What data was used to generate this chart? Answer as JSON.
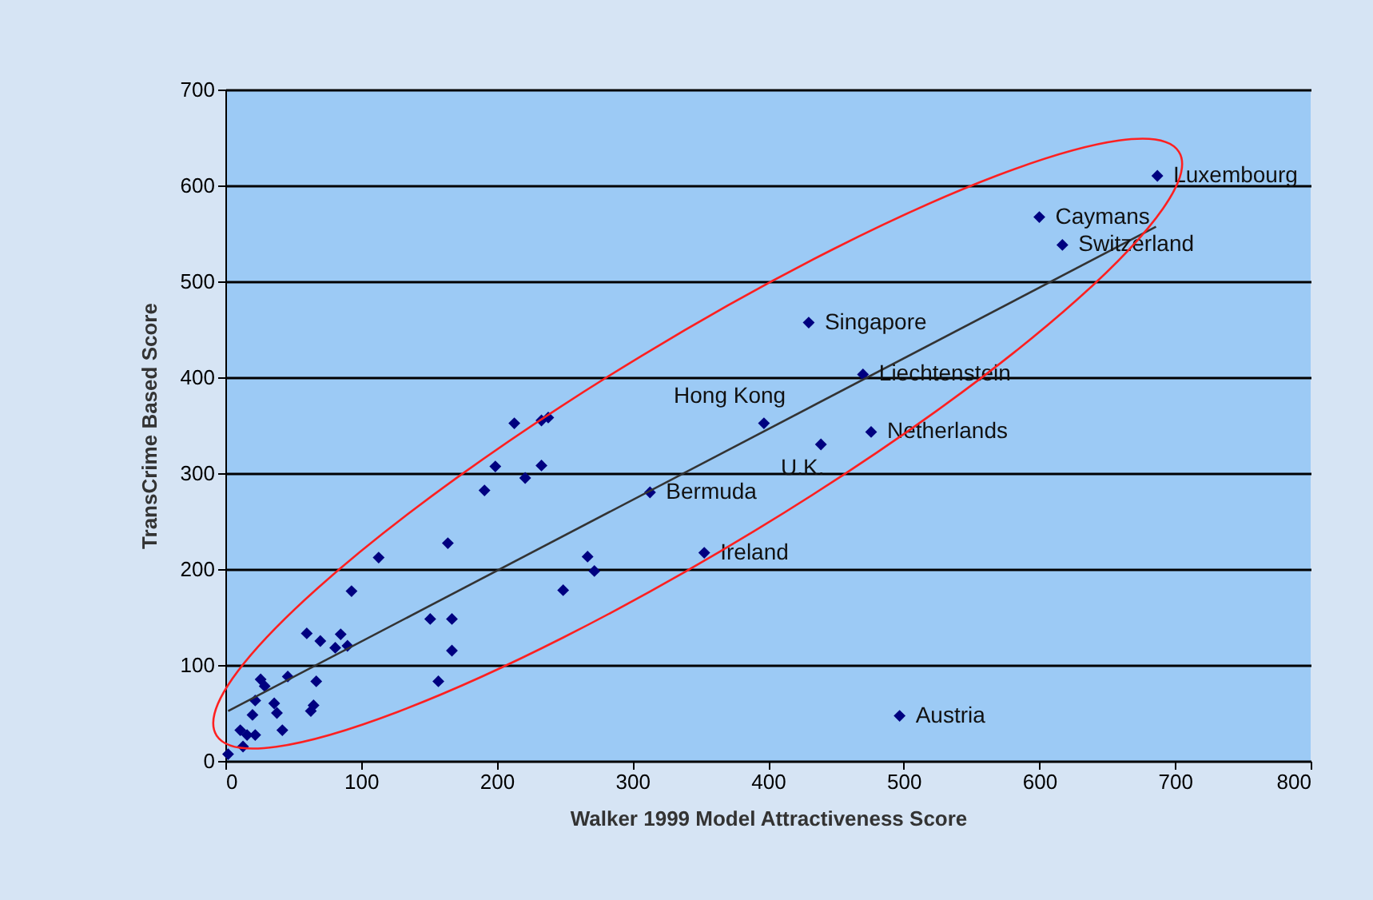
{
  "chart_data": {
    "type": "scatter",
    "xlabel": "Walker 1999  Model Attractiveness  Score",
    "ylabel": "TransCrime Based Score",
    "xlim": [
      0,
      800
    ],
    "xticks": [
      0,
      100,
      200,
      300,
      400,
      500,
      600,
      700,
      800
    ],
    "ylim": [
      0,
      700
    ],
    "yticks": [
      0,
      100,
      200,
      300,
      400,
      500,
      600,
      700
    ],
    "grid": "y",
    "series": [
      {
        "color": "#000080",
        "marker": "diamond",
        "x": [
          687,
          600,
          617,
          430,
          470,
          397,
          439,
          476,
          313,
          353,
          497,
          213,
          233,
          238,
          199,
          233,
          221,
          191,
          164,
          113,
          93,
          267,
          272,
          249,
          151,
          167,
          167,
          157,
          60,
          70,
          85,
          90,
          81,
          46,
          67,
          26,
          29,
          36,
          38,
          63,
          65,
          22,
          20,
          42,
          11,
          16,
          22,
          13,
          2
        ],
        "values": [
          610,
          567,
          538,
          457,
          403,
          352,
          330,
          343,
          280,
          217,
          47,
          352,
          355,
          358,
          307,
          308,
          295,
          282,
          227,
          212,
          177,
          213,
          198,
          178,
          148,
          148,
          115,
          83,
          133,
          125,
          132,
          120,
          118,
          88,
          83,
          85,
          78,
          60,
          50,
          52,
          58,
          63,
          48,
          32,
          32,
          27,
          27,
          15,
          7
        ]
      },
      {
        "type": "line",
        "color": "#333333",
        "marker": "none",
        "line_style": "solid",
        "x": [
          2,
          686
        ],
        "values": [
          52,
          557
        ]
      }
    ],
    "annotations": [
      {
        "text": "Luxembourg",
        "x": 687,
        "y": 610
      },
      {
        "text": "Caymans",
        "x": 600,
        "y": 567
      },
      {
        "text": "Switzerland",
        "x": 617,
        "y": 538
      },
      {
        "text": "Singapore",
        "x": 430,
        "y": 457
      },
      {
        "text": "Liechtenstein",
        "x": 470,
        "y": 403
      },
      {
        "text": "Hong Kong",
        "x": 397,
        "y": 352
      },
      {
        "text": "U.K.",
        "x": 439,
        "y": 330
      },
      {
        "text": "Netherlands",
        "x": 476,
        "y": 343
      },
      {
        "text": "Bermuda",
        "x": 313,
        "y": 280
      },
      {
        "text": "Ireland",
        "x": 353,
        "y": 217
      },
      {
        "text": "Austria",
        "x": 497,
        "y": 47
      }
    ]
  }
}
